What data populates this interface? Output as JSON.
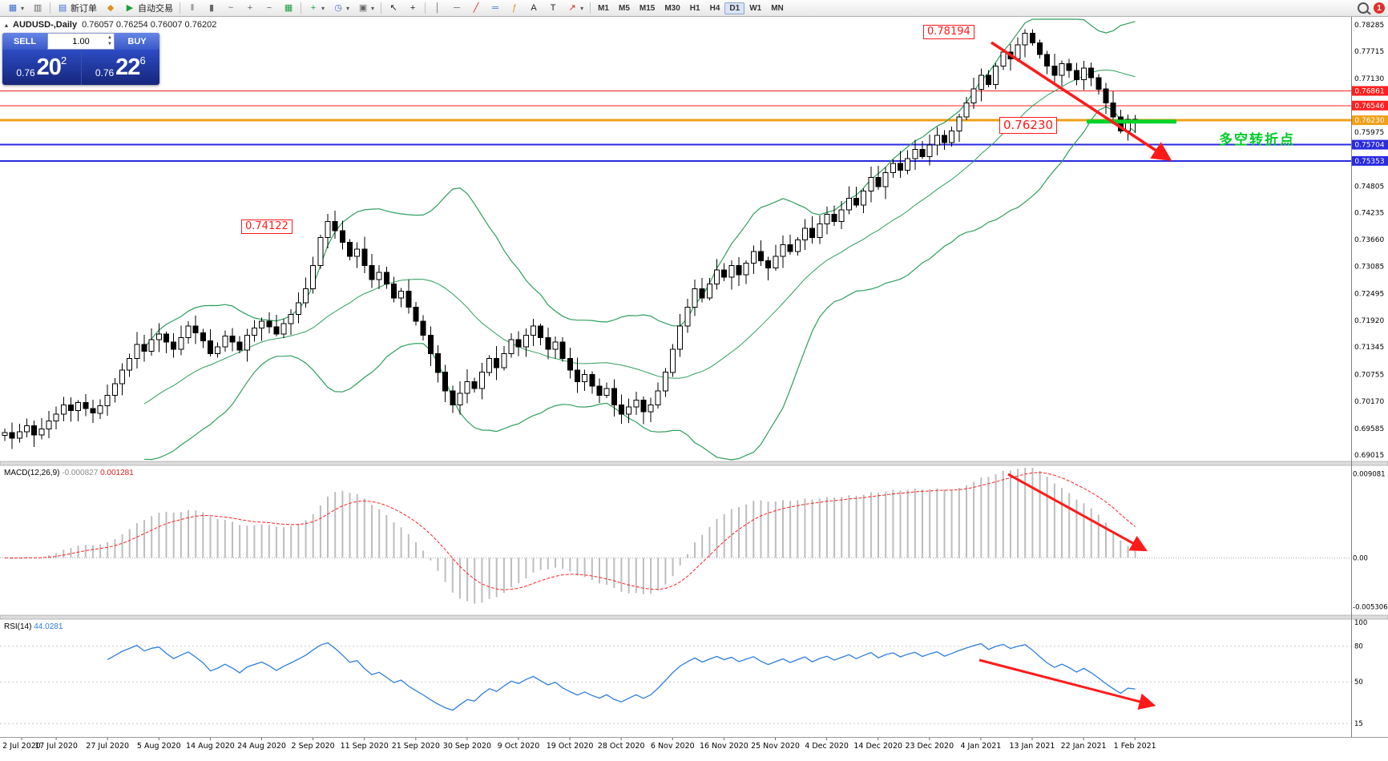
{
  "toolbar": {
    "new_order": "新订单",
    "autotrade": "自动交易",
    "timeframes": [
      "M1",
      "M5",
      "M15",
      "M30",
      "H1",
      "H4",
      "D1",
      "W1",
      "MN"
    ],
    "active_timeframe": "D1",
    "notification": "1"
  },
  "icons": {
    "new_chart": "▦",
    "dropdown": "▾",
    "profiles": "▥",
    "new_order_doc": "▤",
    "mql": "◆",
    "play": "▶",
    "bars": "‖",
    "candles": "▮",
    "line_chart": "~",
    "zoom_in": "+",
    "zoom_out": "−",
    "tile": "▦",
    "indicators": "+",
    "clock": "◷",
    "template": "▣",
    "cursor": "↖",
    "crosshair": "+",
    "vline": "│",
    "hline": "─",
    "trend": "╱",
    "channel": "═",
    "fibo": "ƒ",
    "text_tool": "A",
    "label_tool": "T",
    "shapes": "↗",
    "collapse": "▴",
    "spin_up": "▲",
    "spin_down": "▼"
  },
  "chart": {
    "symbol_title": "AUDUSD-,Daily",
    "ohlc": "0.76057 0.76254 0.76007 0.76202",
    "trade_panel": {
      "sell": "SELL",
      "buy": "BUY",
      "volume": "1.00",
      "sell_prefix": "0.76",
      "sell_big": "20",
      "sell_sup": "2",
      "buy_prefix": "0.76",
      "buy_big": "22",
      "buy_sup": "6"
    },
    "annotations": {
      "peak_label": "0.78194",
      "level_label": "0.76230",
      "swing_label": "0.74122",
      "turn_note": "多空转折点"
    }
  },
  "chart_data": {
    "type": "candlestick",
    "symbol": "AUDUSD",
    "period": "Daily",
    "closes": [
      0.695,
      0.6938,
      0.6952,
      0.6965,
      0.6945,
      0.6958,
      0.6975,
      0.699,
      0.701,
      0.6998,
      0.7015,
      0.7002,
      0.6992,
      0.7008,
      0.703,
      0.7055,
      0.7085,
      0.711,
      0.714,
      0.7125,
      0.715,
      0.7162,
      0.7145,
      0.713,
      0.7155,
      0.718,
      0.7165,
      0.7148,
      0.712,
      0.7135,
      0.7158,
      0.7145,
      0.7128,
      0.716,
      0.7175,
      0.719,
      0.7178,
      0.7162,
      0.7185,
      0.7205,
      0.723,
      0.726,
      0.731,
      0.737,
      0.7405,
      0.7385,
      0.736,
      0.733,
      0.7345,
      0.731,
      0.728,
      0.7295,
      0.727,
      0.724,
      0.7255,
      0.722,
      0.719,
      0.716,
      0.712,
      0.708,
      0.704,
      0.701,
      0.7035,
      0.706,
      0.7045,
      0.708,
      0.711,
      0.709,
      0.712,
      0.715,
      0.7135,
      0.716,
      0.718,
      0.7155,
      0.713,
      0.7145,
      0.711,
      0.7085,
      0.706,
      0.7075,
      0.705,
      0.703,
      0.7045,
      0.701,
      0.699,
      0.7005,
      0.702,
      0.6995,
      0.701,
      0.704,
      0.708,
      0.713,
      0.718,
      0.722,
      0.726,
      0.724,
      0.727,
      0.73,
      0.7285,
      0.731,
      0.729,
      0.7315,
      0.734,
      0.732,
      0.7305,
      0.733,
      0.7355,
      0.734,
      0.7365,
      0.739,
      0.737,
      0.74,
      0.742,
      0.7405,
      0.743,
      0.7455,
      0.744,
      0.747,
      0.75,
      0.748,
      0.751,
      0.753,
      0.7515,
      0.754,
      0.756,
      0.7545,
      0.757,
      0.759,
      0.7575,
      0.76,
      0.763,
      0.766,
      0.769,
      0.772,
      0.77,
      0.774,
      0.777,
      0.7755,
      0.7785,
      0.781,
      0.779,
      0.7765,
      0.774,
      0.772,
      0.7745,
      0.773,
      0.771,
      0.7735,
      0.7715,
      0.769,
      0.766,
      0.763,
      0.76,
      0.7625,
      0.762
    ],
    "bollinger": {
      "period": 20,
      "deviation": 2,
      "color": "#2f9e5c"
    },
    "price_axis": {
      "ticks": [
        "0.78285",
        "0.77715",
        "0.77130",
        "0.75975",
        "0.74805",
        "0.74235",
        "0.73660",
        "0.73085",
        "0.72495",
        "0.71920",
        "0.71345",
        "0.70755",
        "0.70170",
        "0.69585",
        "0.69015"
      ],
      "tags": [
        {
          "label": "0.76861",
          "value": 0.76861,
          "bg": "#ff2020"
        },
        {
          "label": "0.76546",
          "value": 0.76546,
          "bg": "#ff2020"
        },
        {
          "label": "0.76230",
          "value": 0.7623,
          "bg": "#f0a018"
        },
        {
          "label": "0.75704",
          "value": 0.75704,
          "bg": "#2a2ae0"
        },
        {
          "label": "0.75353",
          "value": 0.75353,
          "bg": "#2a2ae0"
        }
      ]
    },
    "hlines": [
      {
        "value": 0.76861,
        "color": "#ff2020",
        "width": 1
      },
      {
        "value": 0.76546,
        "color": "#ff2020",
        "width": 1
      },
      {
        "value": 0.7623,
        "color": "#f0a018",
        "width": 3
      },
      {
        "value": 0.75704,
        "color": "#2a2ae0",
        "width": 2
      },
      {
        "value": 0.75353,
        "color": "#2a2ae0",
        "width": 2
      }
    ],
    "dates": [
      "2 Jul 2020",
      "17 Jul 2020",
      "27 Jul 2020",
      "5 Aug 2020",
      "14 Aug 2020",
      "24 Aug 2020",
      "2 Sep 2020",
      "11 Sep 2020",
      "21 Sep 2020",
      "30 Sep 2020",
      "9 Oct 2020",
      "19 Oct 2020",
      "28 Oct 2020",
      "6 Nov 2020",
      "16 Nov 2020",
      "25 Nov 2020",
      "4 Dec 2020",
      "14 Dec 2020",
      "23 Dec 2020",
      "4 Jan 2021",
      "13 Jan 2021",
      "22 Jan 2021",
      "1 Feb 2021"
    ],
    "macd": {
      "name": "MACD(12,26,9)",
      "value_main": "-0.000827",
      "value_signal": "0.001281",
      "axis": [
        "0.009081",
        "0.00",
        "-0.005306"
      ],
      "hist_color": "#bdbdbd",
      "signal_color": "#ff2020"
    },
    "rsi": {
      "name": "RSI(14)",
      "value": "44.0281",
      "axis": [
        "100",
        "80",
        "50",
        "15"
      ],
      "levels": [
        80,
        50,
        15
      ],
      "color": "#2f7ede"
    },
    "annotation_colors": {
      "arrow": "#ff1a1a",
      "support_segment": "#00d42a"
    }
  }
}
